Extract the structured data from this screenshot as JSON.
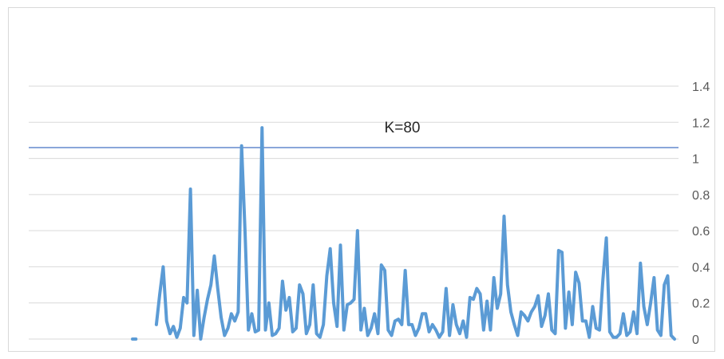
{
  "chart_data": {
    "type": "line",
    "title": "",
    "xlabel": "",
    "ylabel": "",
    "ylim": [
      0,
      1.4
    ],
    "y_ticks": [
      "0",
      "0.2",
      "0.4",
      "0.6",
      "0.8",
      "1",
      "1.2",
      "1.4"
    ],
    "y_axis_position": "right",
    "grid": true,
    "legend": "none",
    "annotation": {
      "text": "K=80",
      "threshold": 1.06
    },
    "colors": {
      "series": "#5b9bd5",
      "threshold": "#4472c4",
      "grid": "#d9d9d9",
      "tick_text": "#595959"
    },
    "series": [
      {
        "values": [
          0,
          0,
          null,
          null,
          null,
          null,
          null,
          0.08,
          0.25,
          0.4,
          0.1,
          0.03,
          0.07,
          0.01,
          0.06,
          0.23,
          0.2,
          0.83,
          0.02,
          0.27,
          0,
          0.12,
          0.22,
          0.3,
          0.46,
          0.28,
          0.12,
          0.02,
          0.06,
          0.14,
          0.1,
          0.15,
          1.07,
          0.6,
          0.05,
          0.14,
          0.04,
          0.05,
          1.17,
          0.05,
          0.2,
          0.02,
          0.03,
          0.06,
          0.32,
          0.16,
          0.23,
          0.04,
          0.06,
          0.3,
          0.25,
          0.03,
          0.08,
          0.3,
          0.03,
          0.01,
          0.08,
          0.35,
          0.5,
          0.2,
          0.07,
          0.52,
          0.05,
          0.19,
          0.2,
          0.22,
          0.6,
          0.05,
          0.17,
          0.02,
          0.06,
          0.14,
          0.03,
          0.41,
          0.38,
          0.05,
          0.02,
          0.1,
          0.11,
          0.08,
          0.38,
          0.08,
          0.08,
          0.02,
          0.06,
          0.14,
          0.14,
          0.04,
          0.08,
          0.05,
          0.01,
          0.04,
          0.28,
          0.02,
          0.19,
          0.08,
          0.03,
          0.1,
          0.01,
          0.23,
          0.22,
          0.28,
          0.25,
          0.05,
          0.21,
          0.05,
          0.34,
          0.17,
          0.25,
          0.68,
          0.3,
          0.15,
          0.08,
          0.02,
          0.15,
          0.13,
          0.1,
          0.15,
          0.18,
          0.24,
          0.07,
          0.13,
          0.25,
          0.05,
          0.03,
          0.49,
          0.48,
          0.06,
          0.26,
          0.08,
          0.37,
          0.31,
          0.1,
          0.1,
          0.01,
          0.18,
          0.06,
          0.05,
          0.33,
          0.56,
          0.04,
          0.01,
          0.01,
          0.03,
          0.14,
          0.02,
          0.04,
          0.15,
          0.03,
          0.42,
          0.18,
          0.08,
          0.2,
          0.34,
          0.05,
          0.02,
          0.3,
          0.35,
          0.02,
          0
        ]
      }
    ]
  }
}
